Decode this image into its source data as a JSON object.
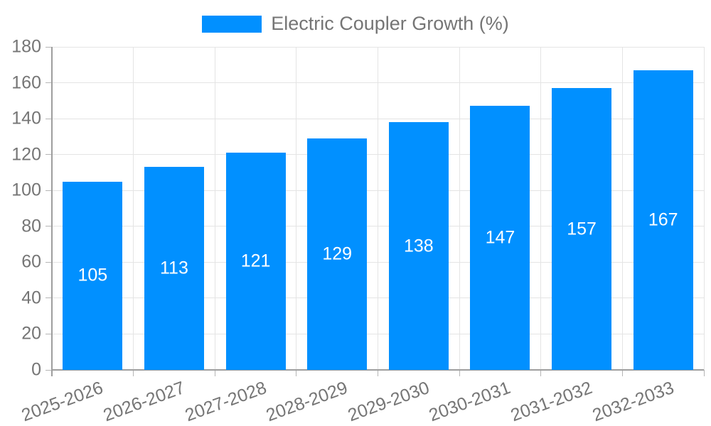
{
  "chart_data": {
    "type": "bar",
    "title": "Electric Coupler Growth (%)",
    "legend_position": "top",
    "categories": [
      "2025-2026",
      "2026-2027",
      "2027-2028",
      "2028-2029",
      "2029-2030",
      "2030-2031",
      "2031-2032",
      "2032-2033"
    ],
    "values": [
      105,
      113,
      121,
      129,
      138,
      147,
      157,
      167
    ],
    "xlabel": "",
    "ylabel": "",
    "ylim": [
      0,
      180
    ],
    "ytick_step": 20,
    "grid": "both",
    "x_label_rotation_deg": -20,
    "colors": {
      "bar": "#0190FF",
      "value_label": "#ffffff",
      "grid": "#e4e4e4",
      "axis": "#9e9e9e",
      "tick": "#b5b5b5",
      "tick_label": "#757575"
    }
  }
}
